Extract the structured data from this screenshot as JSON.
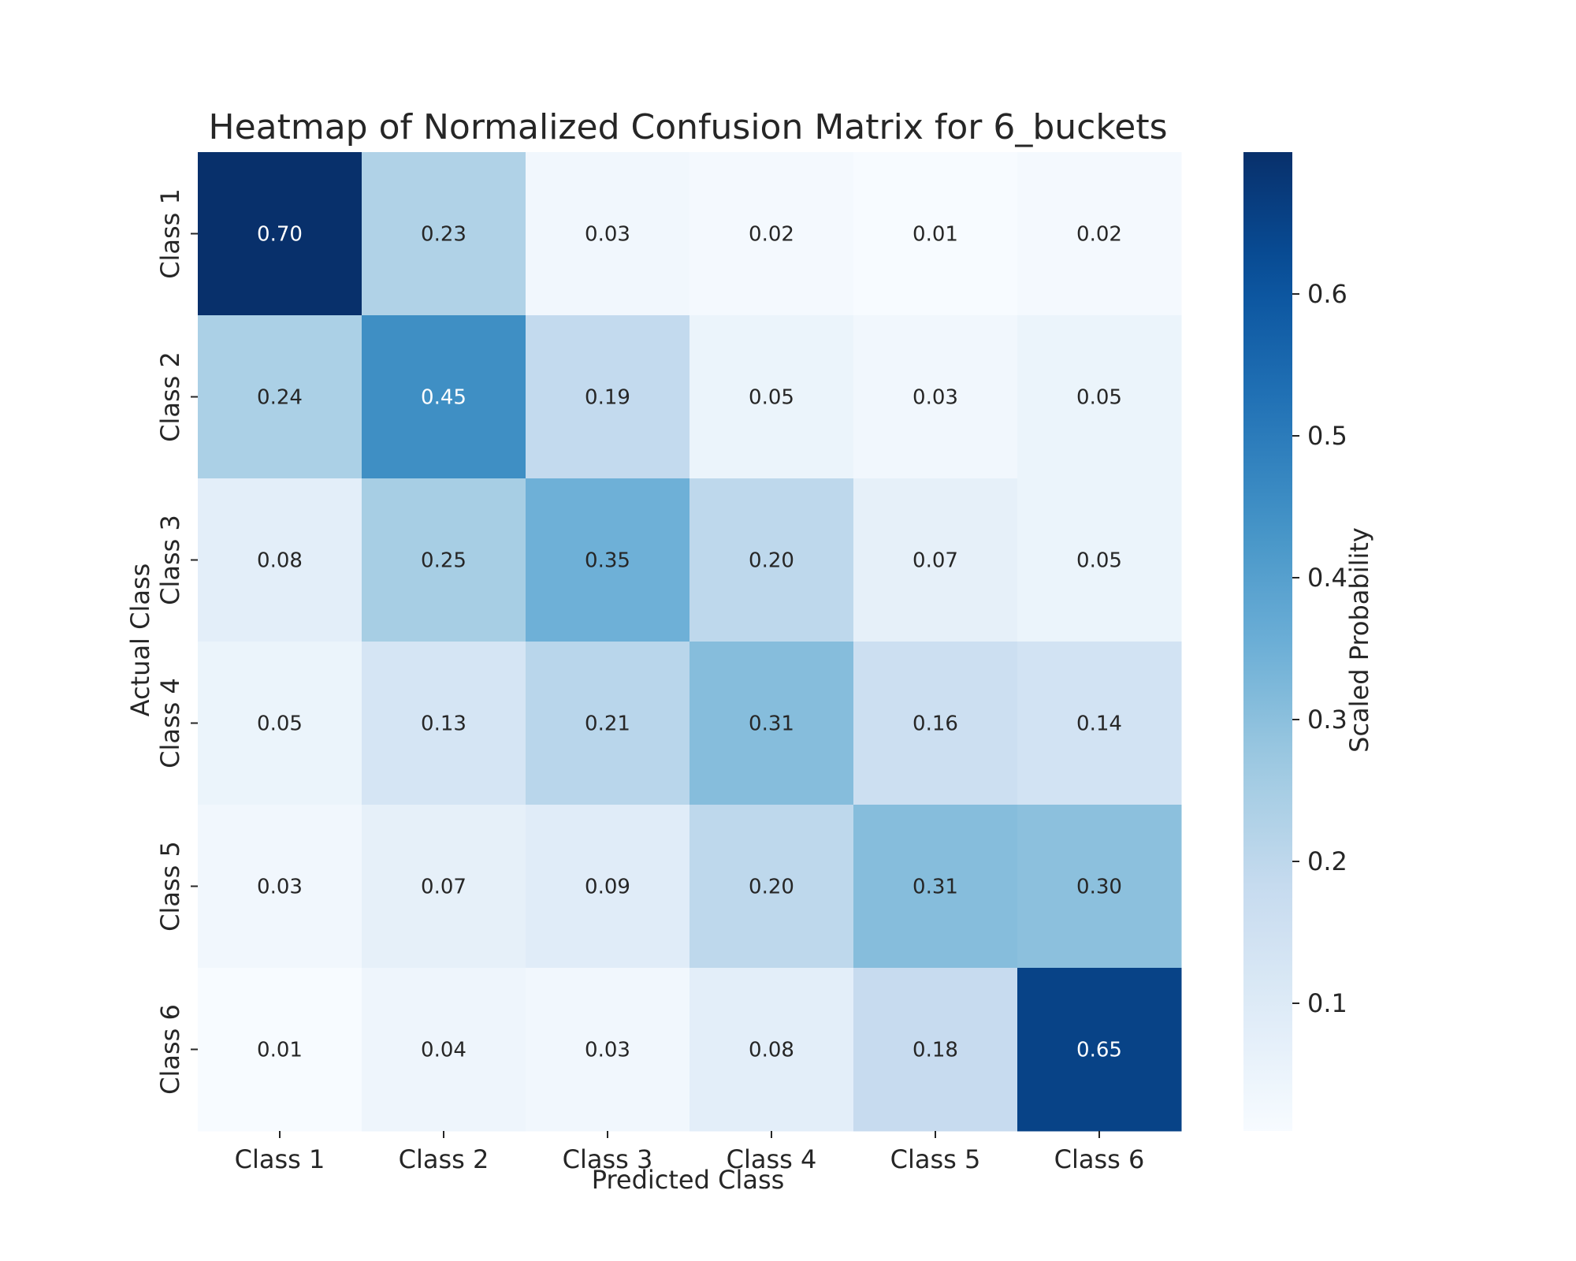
{
  "chart_data": {
    "type": "heatmap",
    "title": "Heatmap of Normalized Confusion Matrix for 6_buckets",
    "xlabel": "Predicted Class",
    "ylabel": "Actual Class",
    "x_categories": [
      "Class 1",
      "Class 2",
      "Class 3",
      "Class 4",
      "Class 5",
      "Class 6"
    ],
    "y_categories": [
      "Class 1",
      "Class 2",
      "Class 3",
      "Class 4",
      "Class 5",
      "Class 6"
    ],
    "values": [
      [
        0.7,
        0.23,
        0.03,
        0.02,
        0.01,
        0.02
      ],
      [
        0.24,
        0.45,
        0.19,
        0.05,
        0.03,
        0.05
      ],
      [
        0.08,
        0.25,
        0.35,
        0.2,
        0.07,
        0.05
      ],
      [
        0.05,
        0.13,
        0.21,
        0.31,
        0.16,
        0.14
      ],
      [
        0.03,
        0.07,
        0.09,
        0.2,
        0.31,
        0.3
      ],
      [
        0.01,
        0.04,
        0.03,
        0.08,
        0.18,
        0.65
      ]
    ],
    "colormap": "Blues",
    "colorbar": {
      "label": "Scaled Probability",
      "range": [
        0.01,
        0.7
      ],
      "ticks": [
        0.1,
        0.2,
        0.3,
        0.4,
        0.5,
        0.6
      ]
    },
    "annotations": true,
    "grid": false
  }
}
